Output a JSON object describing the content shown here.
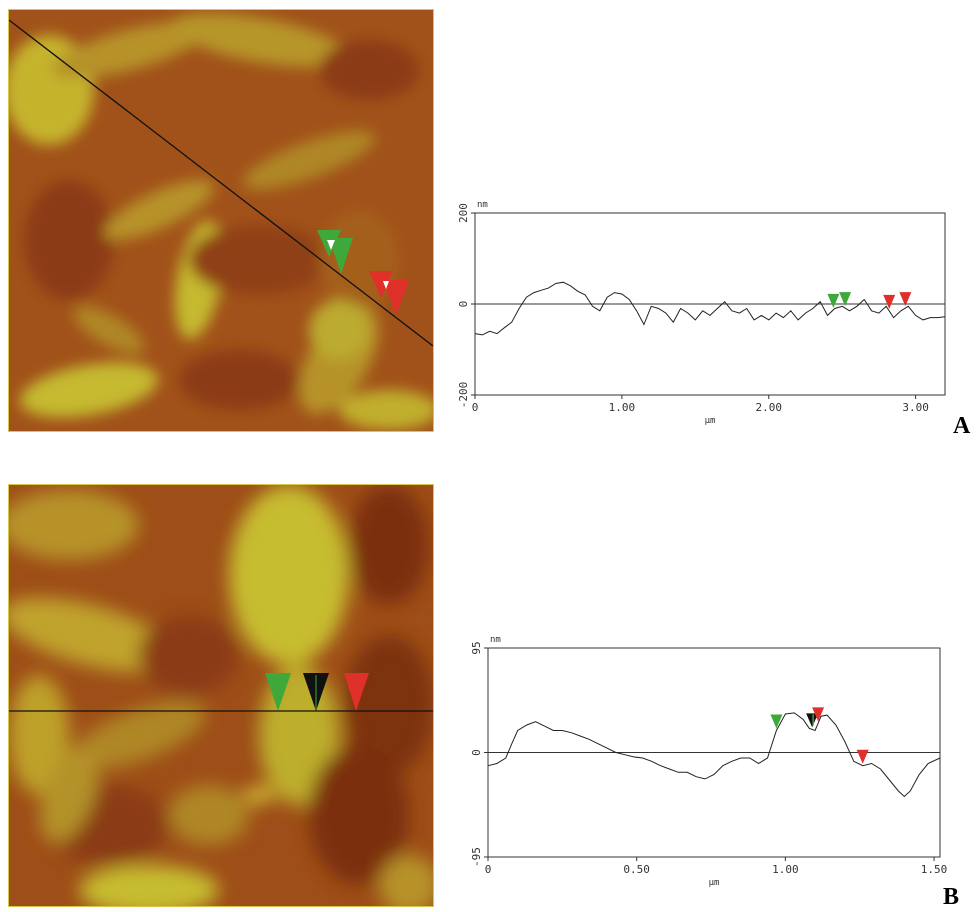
{
  "panels": [
    {
      "letter": "A",
      "chart_data": {
        "type": "line",
        "ylabel": "nm",
        "xlabel": "µm",
        "xlim": [
          0,
          3.2
        ],
        "ylim": [
          -200,
          200
        ],
        "x_ticks": [
          0,
          1.0,
          2.0,
          3.0
        ],
        "x_tick_labels": [
          "0",
          "1.00",
          "2.00",
          "3.00"
        ],
        "y_ticks": [
          200,
          0,
          -200
        ],
        "y_tick_labels": [
          "200",
          "0",
          "-200"
        ],
        "zero_line": true,
        "series": [
          {
            "x": [
              0,
              0.05,
              0.1,
              0.15,
              0.2,
              0.25,
              0.3,
              0.35,
              0.4,
              0.45,
              0.5,
              0.55,
              0.6,
              0.65,
              0.7,
              0.75,
              0.8,
              0.85,
              0.9,
              0.95,
              1.0,
              1.05,
              1.1,
              1.15,
              1.2,
              1.25,
              1.3,
              1.35,
              1.4,
              1.45,
              1.5,
              1.55,
              1.6,
              1.65,
              1.7,
              1.75,
              1.8,
              1.85,
              1.9,
              1.95,
              2.0,
              2.05,
              2.1,
              2.15,
              2.2,
              2.25,
              2.3,
              2.35,
              2.4,
              2.45,
              2.5,
              2.55,
              2.6,
              2.65,
              2.7,
              2.75,
              2.8,
              2.85,
              2.9,
              2.95,
              3.0,
              3.05,
              3.1,
              3.15,
              3.2
            ],
            "y": [
              -65,
              -68,
              -60,
              -65,
              -52,
              -40,
              -10,
              15,
              25,
              30,
              35,
              45,
              48,
              40,
              28,
              20,
              -5,
              -15,
              15,
              25,
              22,
              10,
              -15,
              -45,
              -5,
              -10,
              -20,
              -40,
              -10,
              -20,
              -35,
              -15,
              -25,
              -10,
              5,
              -15,
              -20,
              -10,
              -35,
              -25,
              -35,
              -20,
              -30,
              -15,
              -35,
              -20,
              -10,
              5,
              -25,
              -10,
              -5,
              -15,
              -5,
              10,
              -15,
              -20,
              -5,
              -30,
              -15,
              -5,
              -25,
              -35,
              -30,
              -30,
              -28
            ]
          }
        ],
        "markers": [
          {
            "x": 2.44,
            "color": "#3ea83a"
          },
          {
            "x": 2.52,
            "color": "#3ea83a"
          },
          {
            "x": 2.82,
            "color": "#e0302a"
          },
          {
            "x": 2.93,
            "color": "#e0302a"
          }
        ]
      }
    },
    {
      "letter": "B",
      "chart_data": {
        "type": "line",
        "ylabel": "nm",
        "xlabel": "µm",
        "xlim": [
          0,
          1.52
        ],
        "ylim": [
          -95,
          95
        ],
        "x_ticks": [
          0,
          0.5,
          1.0,
          1.5
        ],
        "x_tick_labels": [
          "0",
          "0.50",
          "1.00",
          "1.50"
        ],
        "y_ticks": [
          95,
          0,
          -95
        ],
        "y_tick_labels": [
          "95",
          "0",
          "-95"
        ],
        "zero_line": true,
        "series": [
          {
            "x": [
              0,
              0.03,
              0.06,
              0.08,
              0.1,
              0.13,
              0.16,
              0.19,
              0.22,
              0.25,
              0.28,
              0.31,
              0.34,
              0.37,
              0.4,
              0.43,
              0.46,
              0.49,
              0.52,
              0.55,
              0.58,
              0.61,
              0.64,
              0.67,
              0.7,
              0.73,
              0.76,
              0.79,
              0.82,
              0.85,
              0.88,
              0.91,
              0.94,
              0.97,
              1.0,
              1.03,
              1.06,
              1.08,
              1.1,
              1.12,
              1.14,
              1.17,
              1.2,
              1.23,
              1.26,
              1.29,
              1.32,
              1.35,
              1.38,
              1.4,
              1.42,
              1.45,
              1.48,
              1.52
            ],
            "y": [
              -12,
              -10,
              -5,
              8,
              20,
              25,
              28,
              24,
              20,
              20,
              18,
              15,
              12,
              8,
              4,
              0,
              -2,
              -4,
              -5,
              -8,
              -12,
              -15,
              -18,
              -18,
              -22,
              -24,
              -20,
              -12,
              -8,
              -5,
              -5,
              -10,
              -5,
              20,
              35,
              36,
              30,
              22,
              20,
              33,
              34,
              25,
              10,
              -8,
              -12,
              -10,
              -15,
              -25,
              -35,
              -40,
              -35,
              -20,
              -10,
              -5
            ]
          }
        ],
        "markers": [
          {
            "x": 0.97,
            "color": "#3ea83a"
          },
          {
            "x": 1.09,
            "color": "#111111",
            "split": "#3ea83a"
          },
          {
            "x": 1.11,
            "color": "#e0302a"
          },
          {
            "x": 1.26,
            "color": "#e0302a"
          }
        ]
      }
    }
  ],
  "colors": {
    "afm_dark": "#8a3a12",
    "afm_mid": "#b5651d",
    "afm_light": "#c9c832",
    "frame": "#d8c84a",
    "marker_green": "#3ea83a",
    "marker_red": "#e0302a",
    "marker_black": "#111111"
  }
}
